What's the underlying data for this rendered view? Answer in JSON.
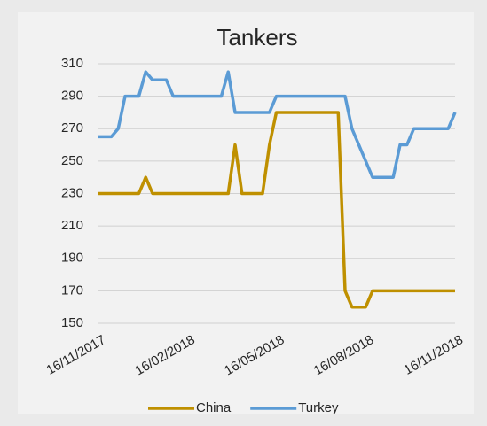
{
  "chart_data": {
    "type": "line",
    "title": "Tankers",
    "categories": [
      "16/11/2017",
      null,
      null,
      null,
      null,
      null,
      null,
      null,
      null,
      null,
      null,
      null,
      null,
      "16/02/2018",
      null,
      null,
      null,
      null,
      null,
      null,
      null,
      null,
      null,
      null,
      null,
      null,
      "16/05/2018",
      null,
      null,
      null,
      null,
      null,
      null,
      null,
      null,
      null,
      null,
      null,
      null,
      "16/08/2018",
      null,
      null,
      null,
      null,
      null,
      null,
      null,
      null,
      null,
      null,
      null,
      null,
      "16/11/2018"
    ],
    "series": [
      {
        "name": "China",
        "color": "#bf9000",
        "values": [
          230,
          230,
          230,
          230,
          230,
          230,
          230,
          240,
          230,
          230,
          230,
          230,
          230,
          230,
          230,
          230,
          230,
          230,
          230,
          230,
          260,
          230,
          230,
          230,
          230,
          260,
          280,
          280,
          280,
          280,
          280,
          280,
          280,
          280,
          280,
          280,
          170,
          160,
          160,
          160,
          170,
          170,
          170,
          170,
          170,
          170,
          170,
          170,
          170,
          170,
          170,
          170,
          170
        ]
      },
      {
        "name": "Turkey",
        "color": "#5b9bd5",
        "values": [
          265,
          265,
          265,
          270,
          290,
          290,
          290,
          305,
          300,
          300,
          300,
          290,
          290,
          290,
          290,
          290,
          290,
          290,
          290,
          305,
          280,
          280,
          280,
          280,
          280,
          280,
          290,
          290,
          290,
          290,
          290,
          290,
          290,
          290,
          290,
          290,
          290,
          270,
          260,
          250,
          240,
          240,
          240,
          240,
          260,
          260,
          270,
          270,
          270,
          270,
          270,
          270,
          280
        ]
      }
    ],
    "ylim": [
      150,
      310
    ],
    "yticks": [
      150,
      170,
      190,
      210,
      230,
      250,
      270,
      290,
      310
    ],
    "grid": true,
    "legend": "bottom"
  }
}
